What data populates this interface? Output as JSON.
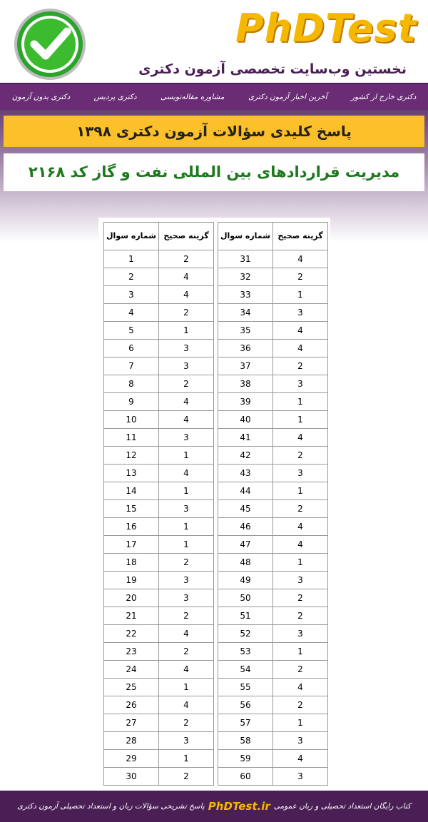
{
  "header": {
    "logo": "PhDTest",
    "subtitle": "نخستین وب‌سایت تخصصی آزمون دکتری"
  },
  "nav": {
    "items": [
      "دکتری خارج از کشور",
      "آخرین اخبار آزمون دکتری",
      "مشاوره مقاله‌نویسی",
      "دکتری پردیس",
      "دکتری بدون آزمون"
    ]
  },
  "banner": {
    "title": "پاسخ کلیدی سؤالات آزمون دکتری ۱۳۹۸",
    "subject": "مدیریت قراردادهای بین المللی نفت و گاز کد ۲۱۶۸"
  },
  "table": {
    "headers": [
      "شماره سوال",
      "گزینه صحیح"
    ],
    "rows": [
      [
        1,
        2
      ],
      [
        2,
        4
      ],
      [
        3,
        4
      ],
      [
        4,
        2
      ],
      [
        5,
        1
      ],
      [
        6,
        3
      ],
      [
        7,
        3
      ],
      [
        8,
        2
      ],
      [
        9,
        4
      ],
      [
        10,
        4
      ],
      [
        11,
        3
      ],
      [
        12,
        1
      ],
      [
        13,
        4
      ],
      [
        14,
        1
      ],
      [
        15,
        3
      ],
      [
        16,
        1
      ],
      [
        17,
        1
      ],
      [
        18,
        2
      ],
      [
        19,
        3
      ],
      [
        20,
        3
      ],
      [
        21,
        2
      ],
      [
        22,
        4
      ],
      [
        23,
        2
      ],
      [
        24,
        4
      ],
      [
        25,
        1
      ],
      [
        26,
        4
      ],
      [
        27,
        2
      ],
      [
        28,
        3
      ],
      [
        29,
        1
      ],
      [
        30,
        2
      ],
      [
        31,
        4
      ],
      [
        32,
        2
      ],
      [
        33,
        1
      ],
      [
        34,
        3
      ],
      [
        35,
        4
      ],
      [
        36,
        4
      ],
      [
        37,
        2
      ],
      [
        38,
        3
      ],
      [
        39,
        1
      ],
      [
        40,
        1
      ],
      [
        41,
        4
      ],
      [
        42,
        2
      ],
      [
        43,
        3
      ],
      [
        44,
        1
      ],
      [
        45,
        2
      ],
      [
        46,
        4
      ],
      [
        47,
        4
      ],
      [
        48,
        1
      ],
      [
        49,
        3
      ],
      [
        50,
        2
      ],
      [
        51,
        2
      ],
      [
        52,
        3
      ],
      [
        53,
        1
      ],
      [
        54,
        2
      ],
      [
        55,
        4
      ],
      [
        56,
        2
      ],
      [
        57,
        1
      ],
      [
        58,
        3
      ],
      [
        59,
        4
      ],
      [
        60,
        3
      ]
    ]
  },
  "footer": {
    "right": "پاسخ تشریحی سؤالات زبان و استعداد تحصیلی آزمون دکتری",
    "brand": "PhDTest.ir",
    "left": "کتاب رایگان استعداد تحصیلی و زبان عمومی"
  }
}
